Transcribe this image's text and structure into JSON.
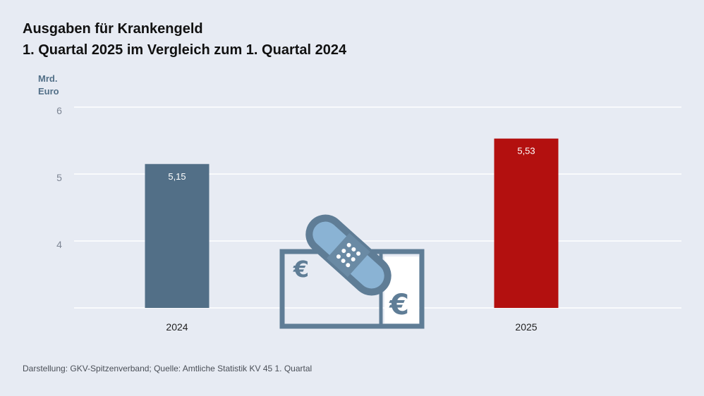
{
  "title_line1": "Ausgaben für Krankengeld",
  "title_line2": "1. Quartal 2025 im Vergleich zum 1. Quartal 2024",
  "unit_line1": "Mrd.",
  "unit_line2": "Euro",
  "source": "Darstellung: GKV-Spitzenverband; Quelle: Amtliche Statistik KV 45 1. Quartal",
  "illustration": "banknote-with-bandage-icon",
  "chart_data": {
    "type": "bar",
    "title": "Ausgaben für Krankengeld",
    "subtitle": "1. Quartal 2025 im Vergleich zum 1. Quartal 2024",
    "ylabel": "Mrd. Euro",
    "categories": [
      "2024",
      "2025"
    ],
    "values": [
      5.15,
      5.53
    ],
    "value_labels": [
      "5,15",
      "5,53"
    ],
    "colors": [
      "#526f87",
      "#b3100f"
    ],
    "ylim": [
      3,
      6
    ],
    "yticks": [
      4,
      5,
      6
    ],
    "grid": true
  }
}
